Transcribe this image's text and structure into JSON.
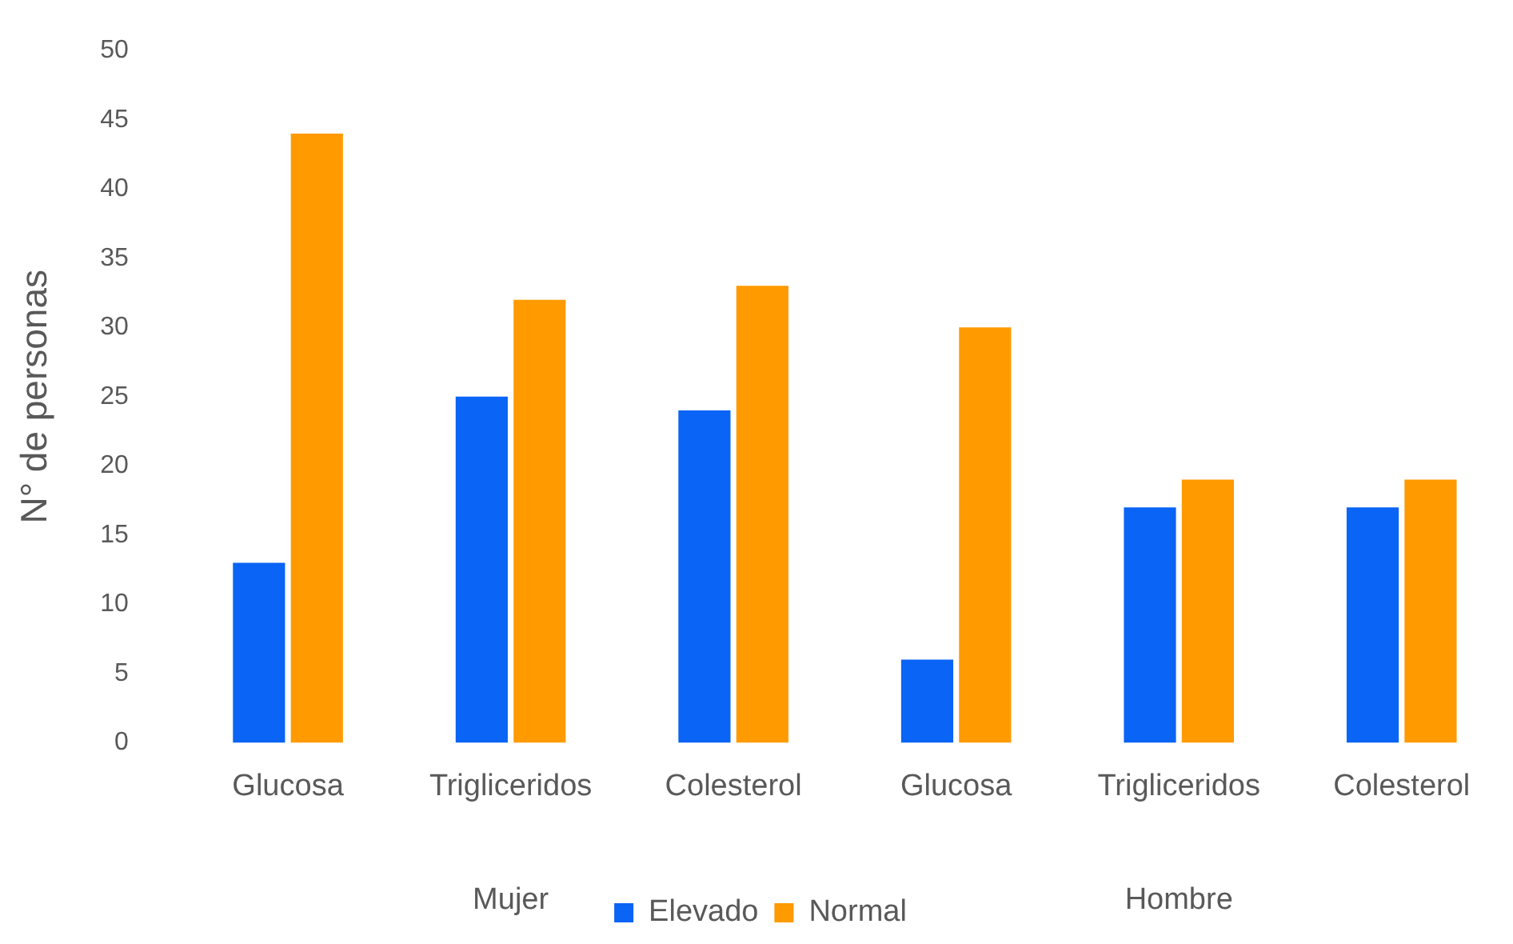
{
  "chart_data": {
    "type": "bar",
    "ylabel": "N° de personas",
    "categories": [
      "Glucosa",
      "Trigliceridos",
      "Colesterol",
      "Glucosa",
      "Trigliceridos",
      "Colesterol"
    ],
    "series": [
      {
        "name": "Elevado",
        "color": "#0a64f5",
        "values": [
          13,
          25,
          24,
          6,
          17,
          17
        ]
      },
      {
        "name": "Normal",
        "color": "#ff9a00",
        "values": [
          44,
          32,
          33,
          30,
          19,
          19
        ]
      }
    ],
    "ylim": [
      0,
      50
    ],
    "yticks": [
      0,
      5,
      10,
      15,
      20,
      25,
      30,
      35,
      40,
      45,
      50
    ],
    "grid": false,
    "legend": "bottom",
    "annotations": [
      "Mujer",
      "Hombre"
    ]
  }
}
